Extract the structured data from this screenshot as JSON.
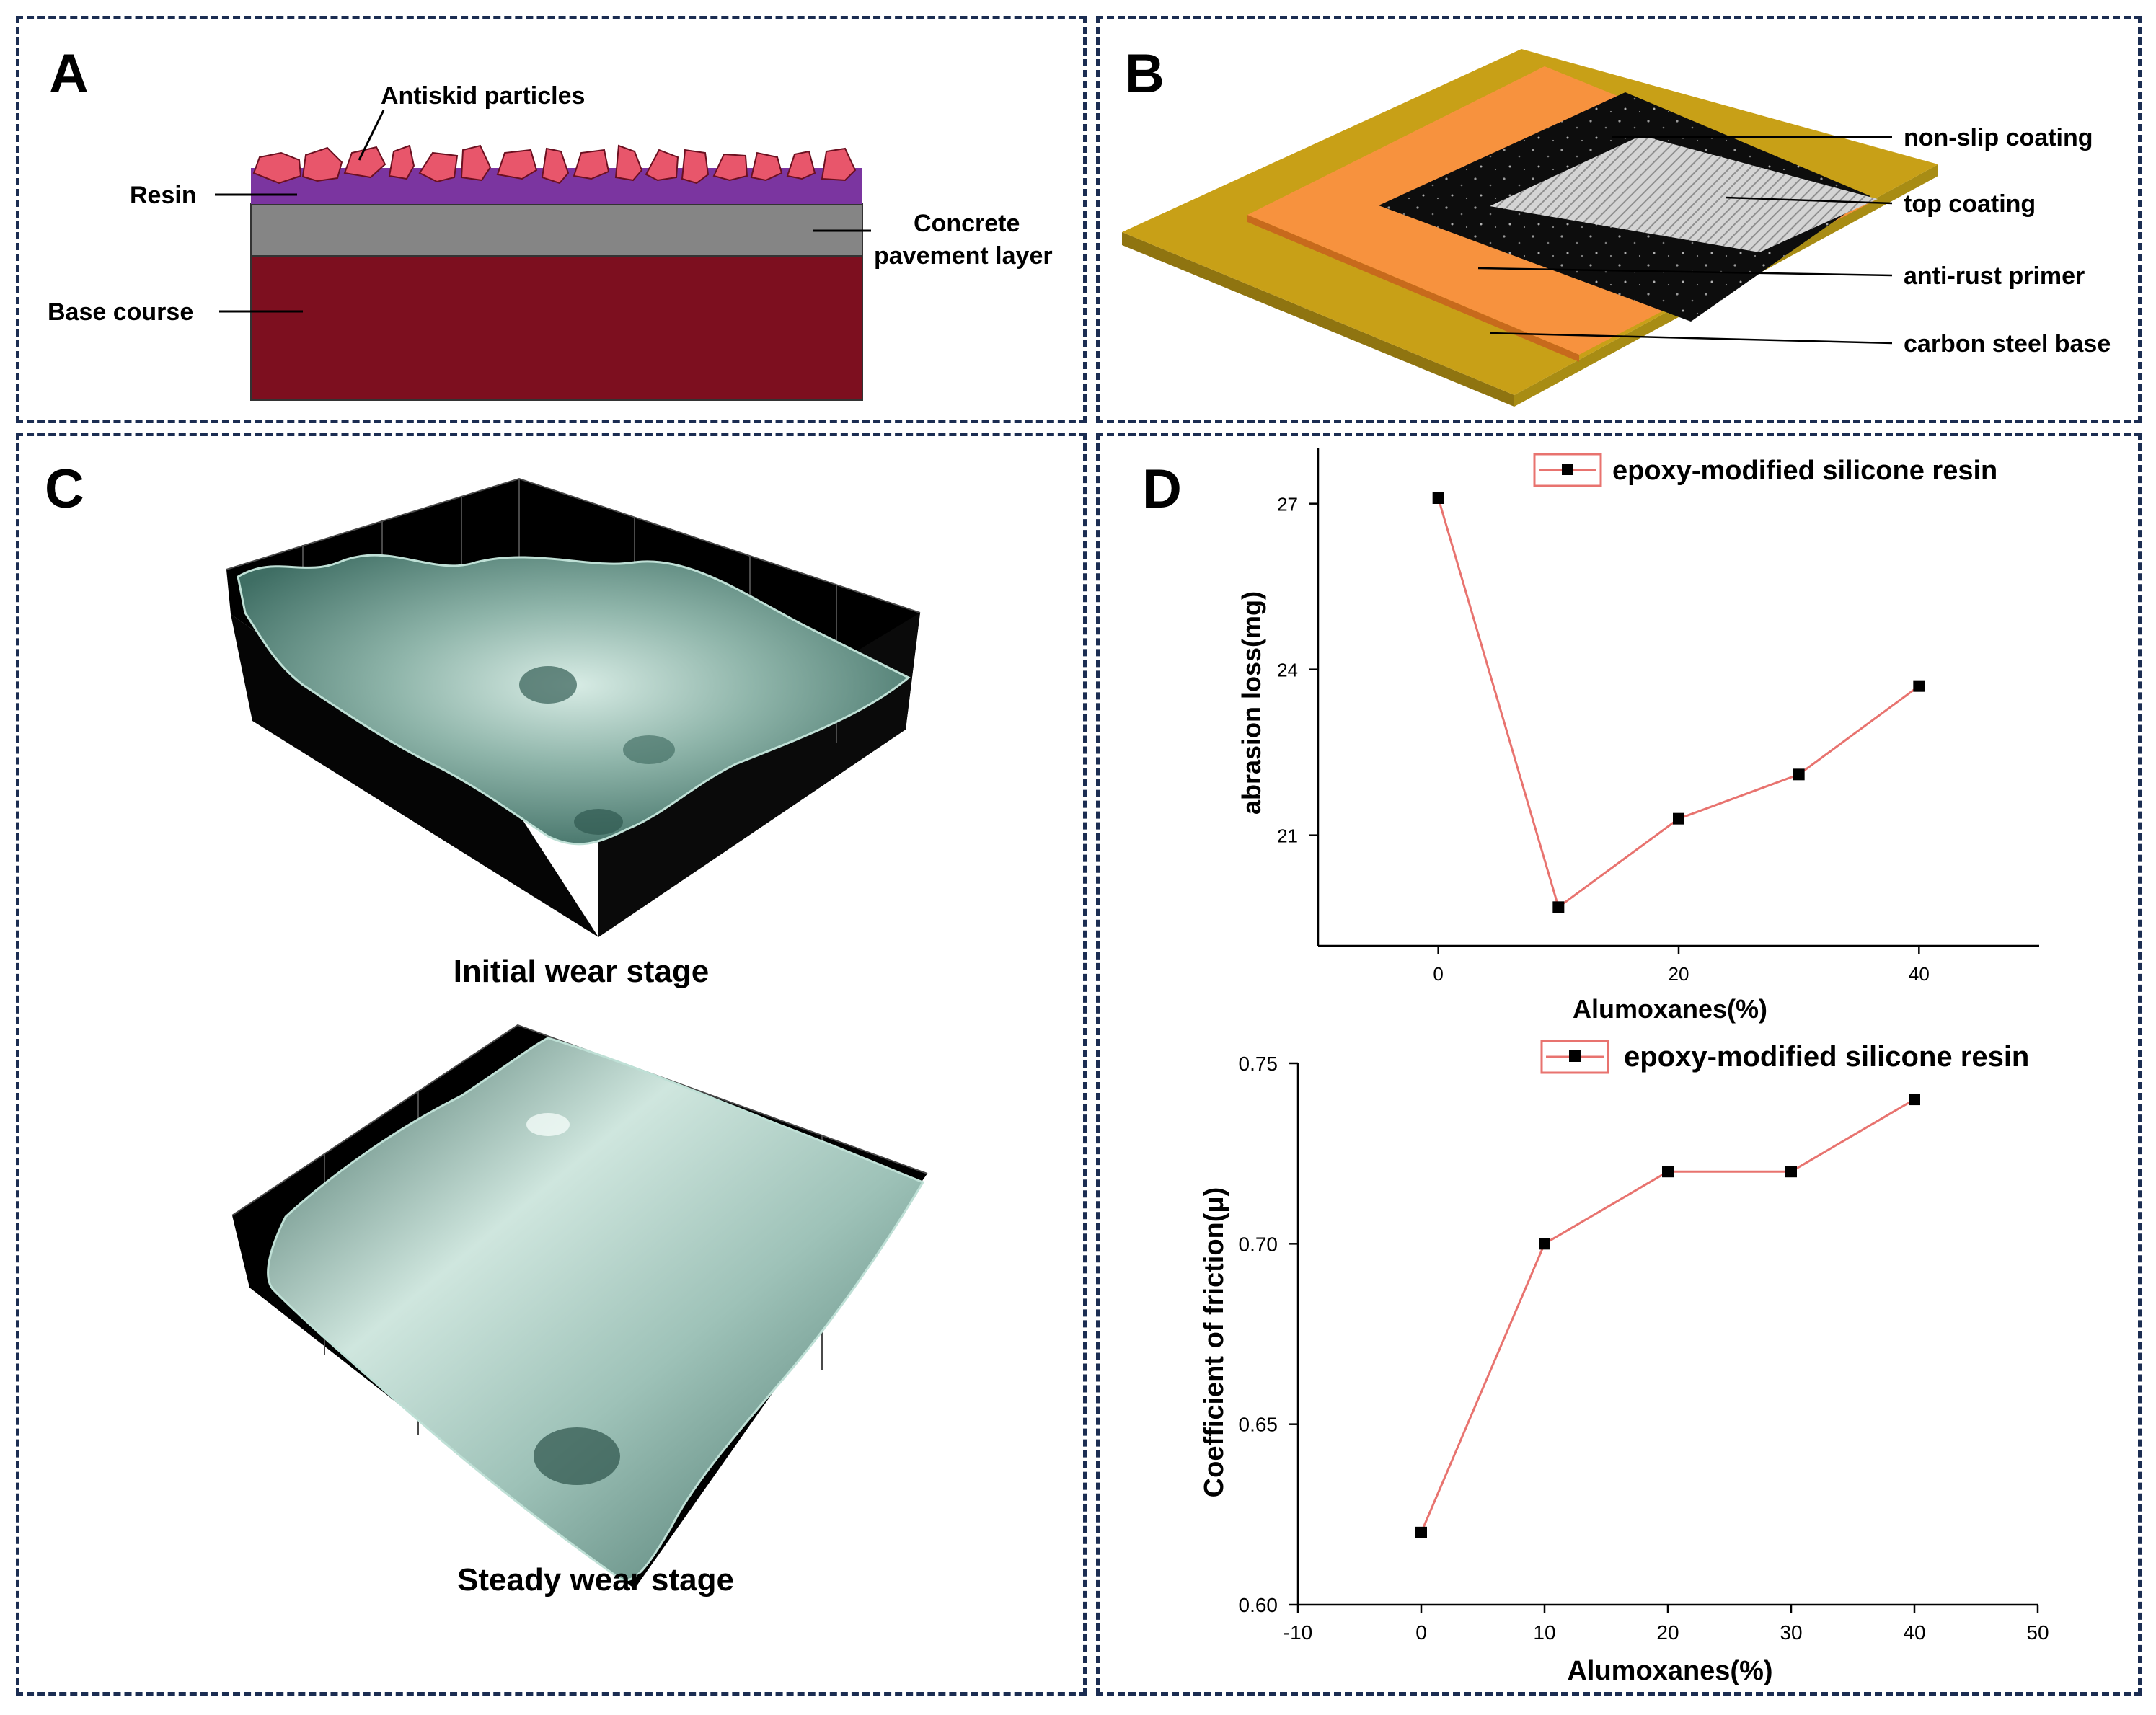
{
  "panel_a": {
    "letter": "A",
    "labels": {
      "particles": "Antiskid particles",
      "resin": "Resin",
      "concrete_1": "Concrete",
      "concrete_2": "pavement layer",
      "base": "Base course"
    },
    "colors": {
      "particles": "#e8566b",
      "resin": "#7b35a0",
      "concrete": "#858585",
      "base": "#7d0f1f"
    }
  },
  "panel_b": {
    "letter": "B",
    "labels": {
      "nonslip": "non-slip coating",
      "top": "top coating",
      "primer": "anti-rust primer",
      "base": "carbon steel base"
    },
    "colors": {
      "base": "#c8a017",
      "primer": "#f7923e",
      "nonslip": "#111111",
      "top": "#c9c9c9"
    }
  },
  "panel_c": {
    "letter": "C",
    "captions": {
      "initial": "Initial wear stage",
      "steady": "Steady wear stage"
    }
  },
  "panel_d": {
    "letter": "D"
  },
  "chart_data": [
    {
      "type": "line",
      "title": "",
      "xlabel": "Alumoxanes(%)",
      "ylabel": "abrasion loss(mg)",
      "xlim": [
        -10,
        50
      ],
      "ylim": [
        19,
        28
      ],
      "xticks": [
        0,
        20,
        40
      ],
      "yticks": [
        21,
        24,
        27
      ],
      "x": [
        0,
        10,
        20,
        30,
        40
      ],
      "series": [
        {
          "name": "epoxy-modified silicone resin",
          "values": [
            27.1,
            19.7,
            21.3,
            22.1,
            23.7
          ]
        }
      ],
      "legend": "top",
      "grid": false,
      "colors": {
        "line": "#e8736f",
        "marker": "#000000"
      }
    },
    {
      "type": "line",
      "title": "",
      "xlabel": "Alumoxanes(%)",
      "ylabel": "Coefficient of friction(μ)",
      "xlim": [
        -10,
        50
      ],
      "ylim": [
        0.6,
        0.75
      ],
      "xticks": [
        -10,
        0,
        10,
        20,
        30,
        40,
        50
      ],
      "yticks": [
        0.6,
        0.65,
        0.7,
        0.75
      ],
      "yticklabels": [
        "0.60",
        "0.65",
        "0.70",
        "0.75"
      ],
      "x": [
        0,
        10,
        20,
        30,
        40
      ],
      "series": [
        {
          "name": "epoxy-modified silicone resin",
          "values": [
            0.62,
            0.7,
            0.72,
            0.72,
            0.74
          ]
        }
      ],
      "legend": "top",
      "grid": false,
      "colors": {
        "line": "#e8736f",
        "marker": "#000000"
      }
    }
  ]
}
